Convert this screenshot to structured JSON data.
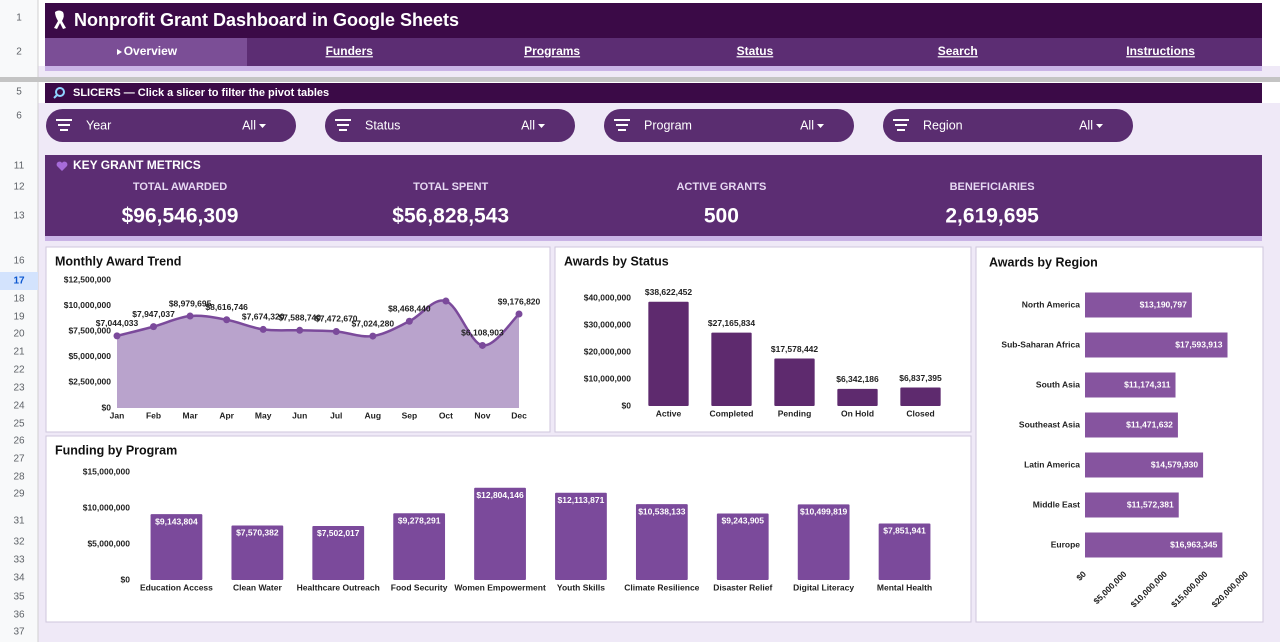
{
  "header": {
    "title": "Nonprofit Grant Dashboard in Google Sheets"
  },
  "tabs": [
    "Overview",
    "Funders",
    "Programs",
    "Status",
    "Search",
    "Instructions"
  ],
  "rows": [
    "1",
    "2",
    "5",
    "6",
    "11",
    "12",
    "13",
    "16",
    "17",
    "18",
    "19",
    "20",
    "21",
    "22",
    "23",
    "24",
    "25",
    "26",
    "27",
    "28",
    "29",
    "31",
    "32",
    "33",
    "34",
    "35",
    "36",
    "37"
  ],
  "selected_row": "17",
  "slicers": {
    "title": "SLICERS — Click a slicer to filter the pivot tables",
    "items": [
      {
        "label": "Year",
        "value": "All"
      },
      {
        "label": "Status",
        "value": "All"
      },
      {
        "label": "Program",
        "value": "All"
      },
      {
        "label": "Region",
        "value": "All"
      }
    ]
  },
  "metrics": {
    "title": "KEY GRANT METRICS",
    "items": [
      {
        "label": "TOTAL AWARDED",
        "value": "$96,546,309"
      },
      {
        "label": "TOTAL SPENT",
        "value": "$56,828,543"
      },
      {
        "label": "ACTIVE GRANTS",
        "value": "500"
      },
      {
        "label": "BENEFICIARIES",
        "value": "2,619,695"
      }
    ]
  },
  "chart_data": [
    {
      "type": "area",
      "title": "Monthly Award Trend",
      "color": "#7b4a9b",
      "fill": "#b9a3cc",
      "categories": [
        "Jan",
        "Feb",
        "Mar",
        "Apr",
        "May",
        "Jun",
        "Jul",
        "Aug",
        "Sep",
        "Oct",
        "Nov",
        "Dec"
      ],
      "values": [
        7044033,
        7947037,
        8979695,
        8616746,
        7674320,
        7588740,
        7472670,
        7024280,
        8468440,
        10444625,
        6108903,
        9176820
      ],
      "value_labels": [
        "$7,044,033",
        "$7,947,037",
        "$8,979,695",
        "$8,616,746",
        "$7,674,320",
        "$7,588,740",
        "$7,472,670",
        "$7,024,280",
        "$8,468,440",
        null,
        "$6,108,903",
        "$9,176,820"
      ],
      "ylim": [
        0,
        12500000
      ],
      "yticks": [
        {
          "value": 0,
          "label": "$0"
        },
        {
          "value": 2500000,
          "label": "$2,500,000"
        },
        {
          "value": 5000000,
          "label": "$5,000,000"
        },
        {
          "value": 7500000,
          "label": "$7,500,000"
        },
        {
          "value": 10000000,
          "label": "$10,000,000"
        },
        {
          "value": 12500000,
          "label": "$12,500,000"
        }
      ]
    },
    {
      "type": "bar",
      "title": "Awards by Status",
      "color": "#5e2a6e",
      "label_position": "outside",
      "categories": [
        "Active",
        "Completed",
        "Pending",
        "On Hold",
        "Closed"
      ],
      "values": [
        38622452,
        27165834,
        17578442,
        6342186,
        6837395
      ],
      "value_labels": [
        "$38,622,452",
        "$27,165,834",
        "$17,578,442",
        "$6,342,186",
        "$6,837,395"
      ],
      "ylim": [
        0,
        40000000
      ],
      "yticks": [
        {
          "value": 0,
          "label": "$0"
        },
        {
          "value": 10000000,
          "label": "$10,000,000"
        },
        {
          "value": 20000000,
          "label": "$20,000,000"
        },
        {
          "value": 30000000,
          "label": "$30,000,000"
        },
        {
          "value": 40000000,
          "label": "$40,000,000"
        }
      ]
    },
    {
      "type": "hbar",
      "title": "Awards by Region",
      "color": "#86549f",
      "label_position": "inside",
      "categories": [
        "North America",
        "Sub-Saharan Africa",
        "South Asia",
        "Southeast Asia",
        "Latin America",
        "Middle East",
        "Europe"
      ],
      "values": [
        13190797,
        17593913,
        11174311,
        11471632,
        14579930,
        11572381,
        16963345
      ],
      "value_labels": [
        "$13,190,797",
        "$17,593,913",
        "$11,174,311",
        "$11,471,632",
        "$14,579,930",
        "$11,572,381",
        "$16,963,345"
      ],
      "xlim": [
        0,
        20000000
      ],
      "xticks": [
        {
          "value": 0,
          "label": "$0"
        },
        {
          "value": 5000000,
          "label": "$5,000,000"
        },
        {
          "value": 10000000,
          "label": "$10,000,000"
        },
        {
          "value": 15000000,
          "label": "$15,000,000"
        },
        {
          "value": 20000000,
          "label": "$20,000,000"
        }
      ]
    },
    {
      "type": "bar",
      "title": "Funding by Program",
      "color": "#7b4a9b",
      "label_position": "inside",
      "categories": [
        "Education Access",
        "Clean Water",
        "Healthcare Outreach",
        "Food Security",
        "Women Empowerment",
        "Youth Skills",
        "Climate Resilience",
        "Disaster Relief",
        "Digital Literacy",
        "Mental Health"
      ],
      "values": [
        9143804,
        7570382,
        7502017,
        9278291,
        12804146,
        12113871,
        10538133,
        9243905,
        10499819,
        7851941
      ],
      "value_labels": [
        "$9,143,804",
        "$7,570,382",
        "$7,502,017",
        "$9,278,291",
        "$12,804,146",
        "$12,113,871",
        "$10,538,133",
        "$9,243,905",
        "$10,499,819",
        "$7,851,941"
      ],
      "ylim": [
        0,
        15000000
      ],
      "yticks": [
        {
          "value": 0,
          "label": "$0"
        },
        {
          "value": 5000000,
          "label": "$5,000,000"
        },
        {
          "value": 10000000,
          "label": "$10,000,000"
        },
        {
          "value": 15000000,
          "label": "$15,000,000"
        }
      ]
    }
  ]
}
